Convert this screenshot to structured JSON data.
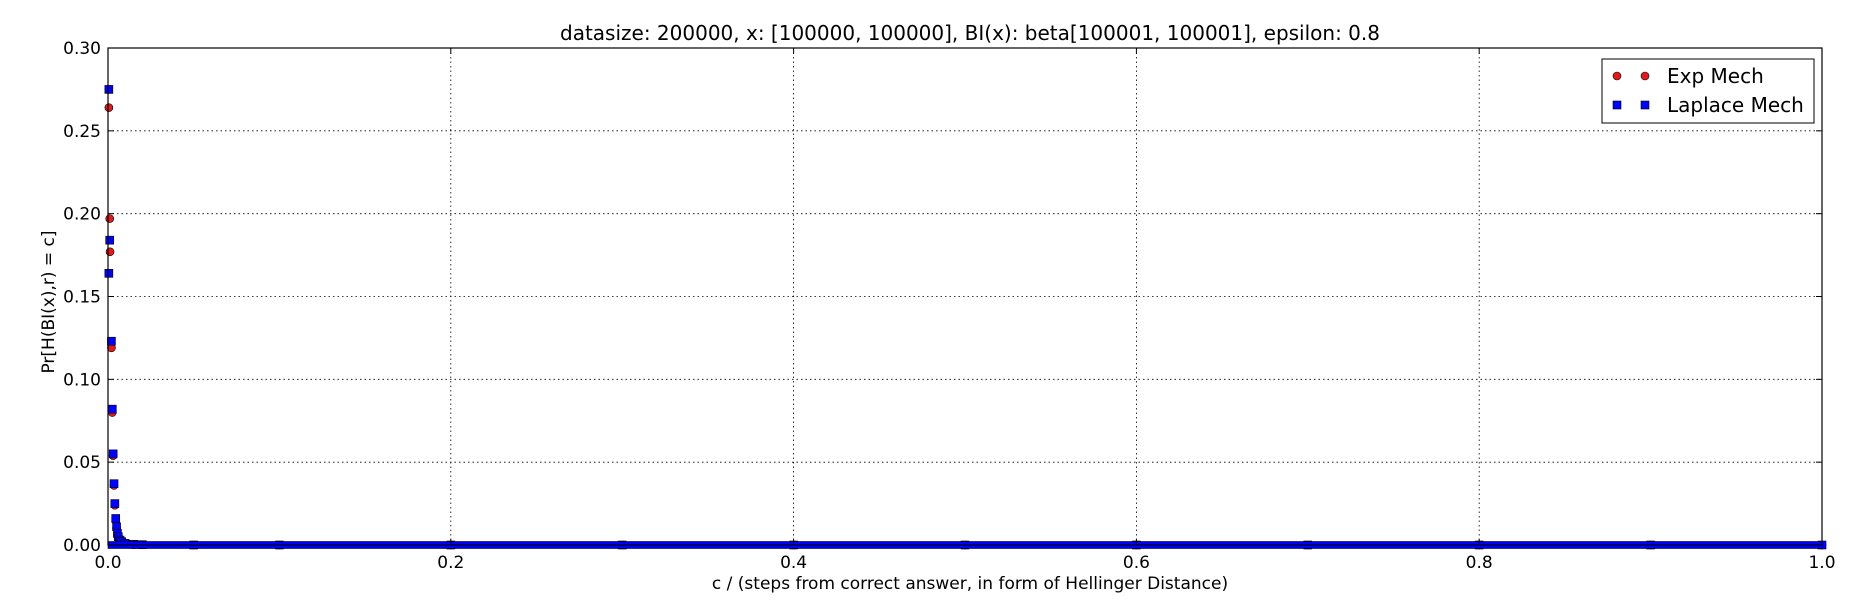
{
  "chart_data": {
    "type": "scatter",
    "title": "datasize: 200000, x: [100000, 100000], BI(x): beta[100001, 100001], epsilon: 0.8",
    "xlabel": "c / (steps from correct answer, in form of Hellinger Distance)",
    "ylabel": "Pr[H(BI(x),r) = c]",
    "xlim": [
      0.0,
      1.0
    ],
    "ylim": [
      0.0,
      0.3
    ],
    "x_ticks": [
      "0.0",
      "0.2",
      "0.4",
      "0.6",
      "0.8",
      "1.0"
    ],
    "y_ticks": [
      "0.00",
      "0.05",
      "0.10",
      "0.15",
      "0.20",
      "0.25",
      "0.30"
    ],
    "grid": true,
    "legend_position": "top-right",
    "series": [
      {
        "name": "Exp Mech",
        "marker": "circle",
        "color": "#e31a1c",
        "points": [
          [
            0.0005,
            0.264
          ],
          [
            0.001,
            0.197
          ],
          [
            0.0012,
            0.177
          ],
          [
            0.002,
            0.119
          ],
          [
            0.0025,
            0.08
          ],
          [
            0.003,
            0.054
          ],
          [
            0.0035,
            0.036
          ],
          [
            0.004,
            0.024
          ],
          [
            0.0045,
            0.015
          ],
          [
            0.005,
            0.01
          ],
          [
            0.0055,
            0.006
          ],
          [
            0.006,
            0.004
          ],
          [
            0.007,
            0.002
          ],
          [
            0.008,
            0.001
          ],
          [
            0.01,
            0.0005
          ],
          [
            0.015,
            0.0002
          ],
          [
            0.02,
            0.0001
          ],
          [
            0.05,
            0.0
          ],
          [
            0.1,
            0.0
          ],
          [
            0.2,
            0.0
          ],
          [
            0.3,
            0.0
          ],
          [
            0.4,
            0.0
          ],
          [
            0.5,
            0.0
          ],
          [
            0.6,
            0.0
          ],
          [
            0.7,
            0.0
          ],
          [
            0.8,
            0.0
          ],
          [
            0.9,
            0.0
          ],
          [
            1.0,
            0.0
          ]
        ]
      },
      {
        "name": "Laplace Mech",
        "marker": "square",
        "color": "#0000ff",
        "points": [
          [
            0.0005,
            0.275
          ],
          [
            0.001,
            0.184
          ],
          [
            0.0005,
            0.164
          ],
          [
            0.002,
            0.123
          ],
          [
            0.0025,
            0.082
          ],
          [
            0.003,
            0.055
          ],
          [
            0.0035,
            0.037
          ],
          [
            0.004,
            0.025
          ],
          [
            0.0045,
            0.016
          ],
          [
            0.005,
            0.011
          ],
          [
            0.0055,
            0.007
          ],
          [
            0.006,
            0.005
          ],
          [
            0.007,
            0.003
          ],
          [
            0.008,
            0.002
          ],
          [
            0.01,
            0.001
          ],
          [
            0.015,
            0.0004
          ],
          [
            0.02,
            0.0002
          ],
          [
            0.05,
            0.0
          ],
          [
            0.1,
            0.0
          ],
          [
            0.2,
            0.0
          ],
          [
            0.3,
            0.0
          ],
          [
            0.4,
            0.0
          ],
          [
            0.5,
            0.0
          ],
          [
            0.6,
            0.0
          ],
          [
            0.7,
            0.0
          ],
          [
            0.8,
            0.0
          ],
          [
            0.9,
            0.0
          ],
          [
            1.0,
            0.0
          ]
        ]
      }
    ]
  }
}
